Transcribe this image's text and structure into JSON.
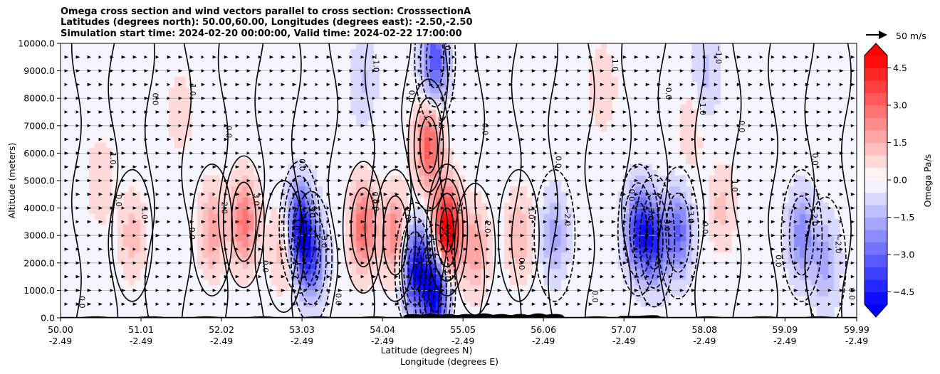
{
  "chart_data": {
    "type": "heatmap",
    "title_lines": [
      "Omega cross section and wind vectors parallel to cross section: CrosssectionA",
      "Latitudes (degrees north): 50.00,60.00, Longitudes (degrees east): -2.50,-2.50",
      "Simulation start time: 2024-02-20 00:00:00, Valid time: 2024-02-22 17:00:00"
    ],
    "ylabel": "Altitude (meters)",
    "xlabel_lines": [
      "Latitude (degrees N)",
      "Longitude (degrees E)"
    ],
    "ylim": [
      0,
      10000
    ],
    "xlim": [
      50.0,
      59.99
    ],
    "y_ticks": [
      0,
      1000,
      2000,
      3000,
      4000,
      5000,
      6000,
      7000,
      8000,
      9000,
      10000
    ],
    "y_tick_labels": [
      "0.0",
      "1000.0",
      "2000.0",
      "3000.0",
      "4000.0",
      "5000.0",
      "6000.0",
      "7000.0",
      "8000.0",
      "9000.0",
      "10000.0"
    ],
    "x_ticks": [
      {
        "lat": 50.0,
        "lat_label": "50.00",
        "lon_label": "-2.49"
      },
      {
        "lat": 51.01,
        "lat_label": "51.01",
        "lon_label": "-2.49"
      },
      {
        "lat": 52.02,
        "lat_label": "52.02",
        "lon_label": "-2.49"
      },
      {
        "lat": 53.03,
        "lat_label": "53.03",
        "lon_label": "-2.49"
      },
      {
        "lat": 54.04,
        "lat_label": "54.04",
        "lon_label": "-2.49"
      },
      {
        "lat": 55.05,
        "lat_label": "55.05",
        "lon_label": "-2.49"
      },
      {
        "lat": 56.06,
        "lat_label": "56.06",
        "lon_label": "-2.49"
      },
      {
        "lat": 57.07,
        "lat_label": "57.07",
        "lon_label": "-2.49"
      },
      {
        "lat": 58.08,
        "lat_label": "58.08",
        "lon_label": "-2.49"
      },
      {
        "lat": 59.09,
        "lat_label": "59.09",
        "lon_label": "-2.49"
      },
      {
        "lat": 59.99,
        "lat_label": "59.99",
        "lon_label": "-2.49"
      }
    ],
    "colorbar": {
      "label": "Omega Pa/s",
      "range": [
        -5.0,
        5.0
      ],
      "extend": "both",
      "ticks": [
        4.5,
        3.0,
        1.5,
        0.0,
        -1.5,
        -3.0,
        -4.5
      ],
      "tick_labels": [
        "4.5",
        "3.0",
        "1.5",
        "0.0",
        "−1.5",
        "−3.0",
        "−4.5"
      ],
      "cmap": "bwr"
    },
    "wind_reference": {
      "label": "50 m/s",
      "speed": 50
    },
    "omega_cells": [
      {
        "lat": 52.3,
        "alt": 3500,
        "omega": 2.5
      },
      {
        "lat": 51.9,
        "alt": 3200,
        "omega": 1.6
      },
      {
        "lat": 52.8,
        "alt": 2600,
        "omega": 1.2
      },
      {
        "lat": 50.9,
        "alt": 3000,
        "omega": 1.0
      },
      {
        "lat": 53.0,
        "alt": 3300,
        "omega": -4.2
      },
      {
        "lat": 53.15,
        "alt": 2200,
        "omega": -3.0
      },
      {
        "lat": 53.8,
        "alt": 3300,
        "omega": 2.8
      },
      {
        "lat": 54.2,
        "alt": 3000,
        "omega": 2.3
      },
      {
        "lat": 54.45,
        "alt": 1800,
        "omega": -4.6
      },
      {
        "lat": 54.7,
        "alt": 1000,
        "omega": -5.2
      },
      {
        "lat": 54.85,
        "alt": 3200,
        "omega": 5.5
      },
      {
        "lat": 54.62,
        "alt": 6300,
        "omega": 3.0
      },
      {
        "lat": 54.7,
        "alt": 9400,
        "omega": -3.3
      },
      {
        "lat": 55.2,
        "alt": 2500,
        "omega": 1.6
      },
      {
        "lat": 55.75,
        "alt": 3000,
        "omega": 1.2
      },
      {
        "lat": 56.2,
        "alt": 3000,
        "omega": -1.5
      },
      {
        "lat": 57.25,
        "alt": 3200,
        "omega": -3.6
      },
      {
        "lat": 57.45,
        "alt": 2800,
        "omega": -3.3
      },
      {
        "lat": 57.75,
        "alt": 3100,
        "omega": -2.8
      },
      {
        "lat": 58.3,
        "alt": 4000,
        "omega": 0.9
      },
      {
        "lat": 59.3,
        "alt": 3000,
        "omega": -2.2
      },
      {
        "lat": 59.6,
        "alt": 2000,
        "omega": -1.5
      },
      {
        "lat": 53.8,
        "alt": 8600,
        "omega": -0.8
      },
      {
        "lat": 51.5,
        "alt": 7500,
        "omega": 0.6
      },
      {
        "lat": 56.8,
        "alt": 8400,
        "omega": 0.7
      },
      {
        "lat": 58.1,
        "alt": 8900,
        "omega": -0.9
      },
      {
        "lat": 50.5,
        "alt": 5000,
        "omega": 0.7
      },
      {
        "lat": 57.9,
        "alt": 6800,
        "omega": 0.6
      }
    ],
    "contour_labels": [
      "0.0",
      "1.0",
      "2.0",
      "3.0",
      "−1.0",
      "−2.0",
      "−3.0"
    ]
  }
}
